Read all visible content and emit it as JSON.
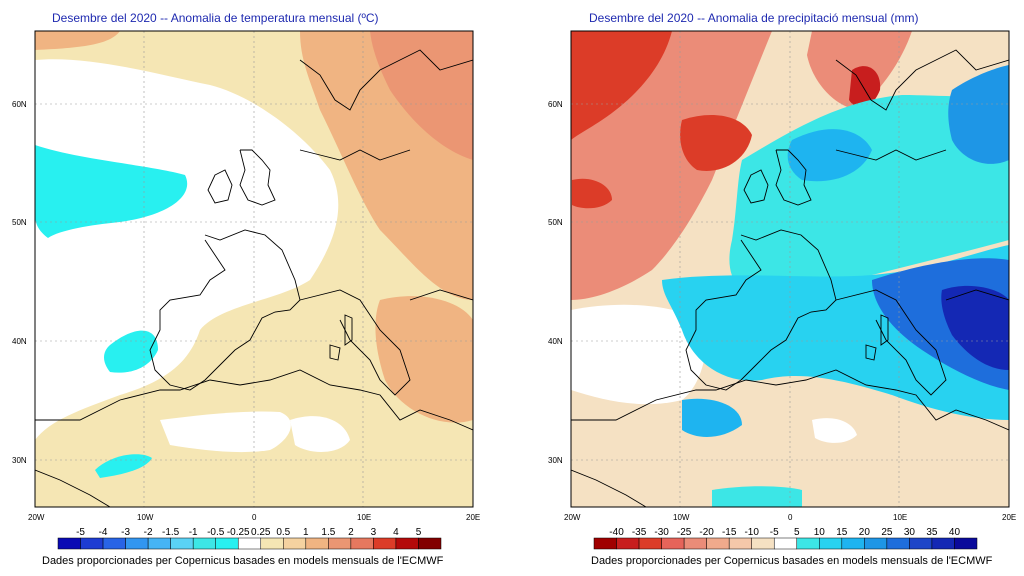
{
  "temperature_panel": {
    "title": "Desembre del 2020 -- Anomalia de temperatura mensual (ºC)",
    "latitude_labels": [
      "60N",
      "50N",
      "40N",
      "30N"
    ],
    "longitude_labels": [
      "20W",
      "10W",
      "0",
      "10E",
      "20E"
    ],
    "colorbar_labels": [
      "-5",
      "-4",
      "-3",
      "-2",
      "-1.5",
      "-1",
      "-0.5",
      "-0.25",
      "0.25",
      "0.5",
      "1",
      "1.5",
      "2",
      "3",
      "4",
      "5"
    ],
    "colorbar_colors": [
      "#0a0ab4",
      "#1e3cd2",
      "#2864e6",
      "#3296f0",
      "#46b4f5",
      "#5ad2f5",
      "#3ce6e6",
      "#28f0f0",
      "#ffffff",
      "#f5e6b4",
      "#f5d2a0",
      "#f0b482",
      "#eb9673",
      "#e6785f",
      "#dc3c28",
      "#b40a0a",
      "#820000"
    ],
    "credit": "Dades proporcionades per Copernicus basades en models mensuals de l'ECMWF"
  },
  "precipitation_panel": {
    "title": "Desembre del 2020 -- Anomalia de precipitació mensual (mm)",
    "latitude_labels": [
      "60N",
      "50N",
      "40N",
      "30N"
    ],
    "longitude_labels": [
      "20W",
      "10W",
      "0",
      "10E",
      "20E"
    ],
    "colorbar_labels": [
      "-40",
      "-35",
      "-30",
      "-25",
      "-20",
      "-15",
      "-10",
      "-5",
      "5",
      "10",
      "15",
      "20",
      "25",
      "30",
      "35",
      "40"
    ],
    "colorbar_colors": [
      "#a00000",
      "#c81e1e",
      "#dc3c28",
      "#e6645a",
      "#eb8c78",
      "#f0aa8c",
      "#f5c8aa",
      "#f5e1c3",
      "#ffffff",
      "#3ce6e6",
      "#28d2f0",
      "#1eb4f0",
      "#1e96e6",
      "#1e6edc",
      "#1e46c8",
      "#1428b4",
      "#0a0a9b"
    ],
    "credit": "Dades proporcionades per Copernicus basades en models mensuals de l'ECMWF"
  }
}
